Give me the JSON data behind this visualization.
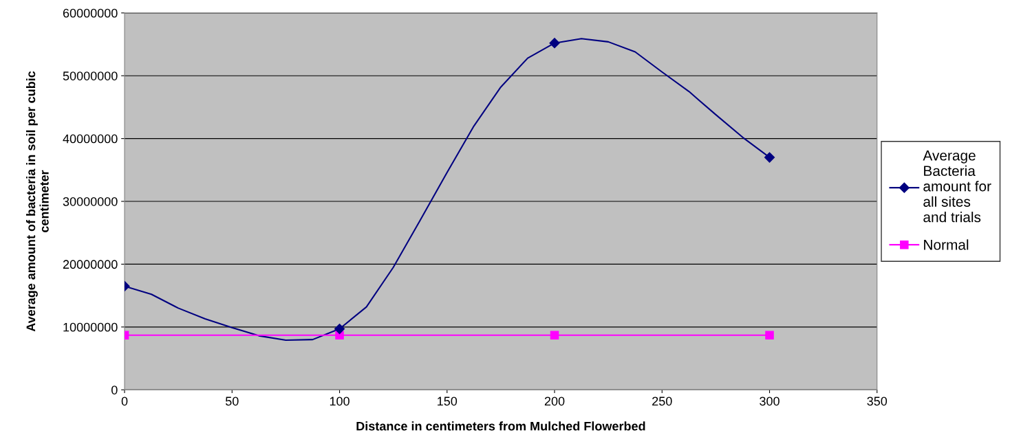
{
  "chart_data": {
    "type": "line",
    "xlabel": "Distance in centimeters from Mulched Flowerbed",
    "ylabel": "Average amount of bacteria in soil per cubic\ncentimeter",
    "x": [
      0,
      100,
      200,
      300
    ],
    "series": [
      {
        "name": "Average\nBacteria\namount for\nall sites\nand trials",
        "color": "#000080",
        "x": [
          0,
          12.5,
          25,
          37.5,
          50,
          62.5,
          75,
          87.5,
          100,
          112.5,
          125,
          137.5,
          150,
          162.5,
          175,
          187.5,
          200,
          212.5,
          225,
          237.5,
          250,
          262.5,
          275,
          287.5,
          300
        ],
        "values": [
          16500000,
          15200000,
          13000000,
          11300000,
          9900000,
          8600000,
          7900000,
          8000000,
          9700000,
          13200000,
          19500000,
          27000000,
          34600000,
          42000000,
          48200000,
          52800000,
          55200000,
          55900000,
          55400000,
          53800000,
          50600000,
          47500000,
          43800000,
          40200000,
          37000000
        ],
        "marker": "none"
      },
      {
        "type": "scatter",
        "color": "#000080",
        "values": [
          16500000,
          9700000,
          55200000,
          37000000
        ],
        "marker": "diamond"
      },
      {
        "name": "Normal",
        "color": "#ff00ff",
        "values": [
          8700000,
          8700000,
          8700000,
          8700000
        ],
        "marker": "square"
      }
    ],
    "xlim": [
      0,
      350
    ],
    "xticks": [
      0,
      50,
      100,
      150,
      200,
      250,
      300,
      350
    ],
    "ylim": [
      0,
      60000000
    ],
    "yticks": [
      0,
      10000000,
      20000000,
      30000000,
      40000000,
      50000000,
      60000000
    ],
    "grid": "y",
    "legend": "right",
    "line_style": "solid"
  }
}
